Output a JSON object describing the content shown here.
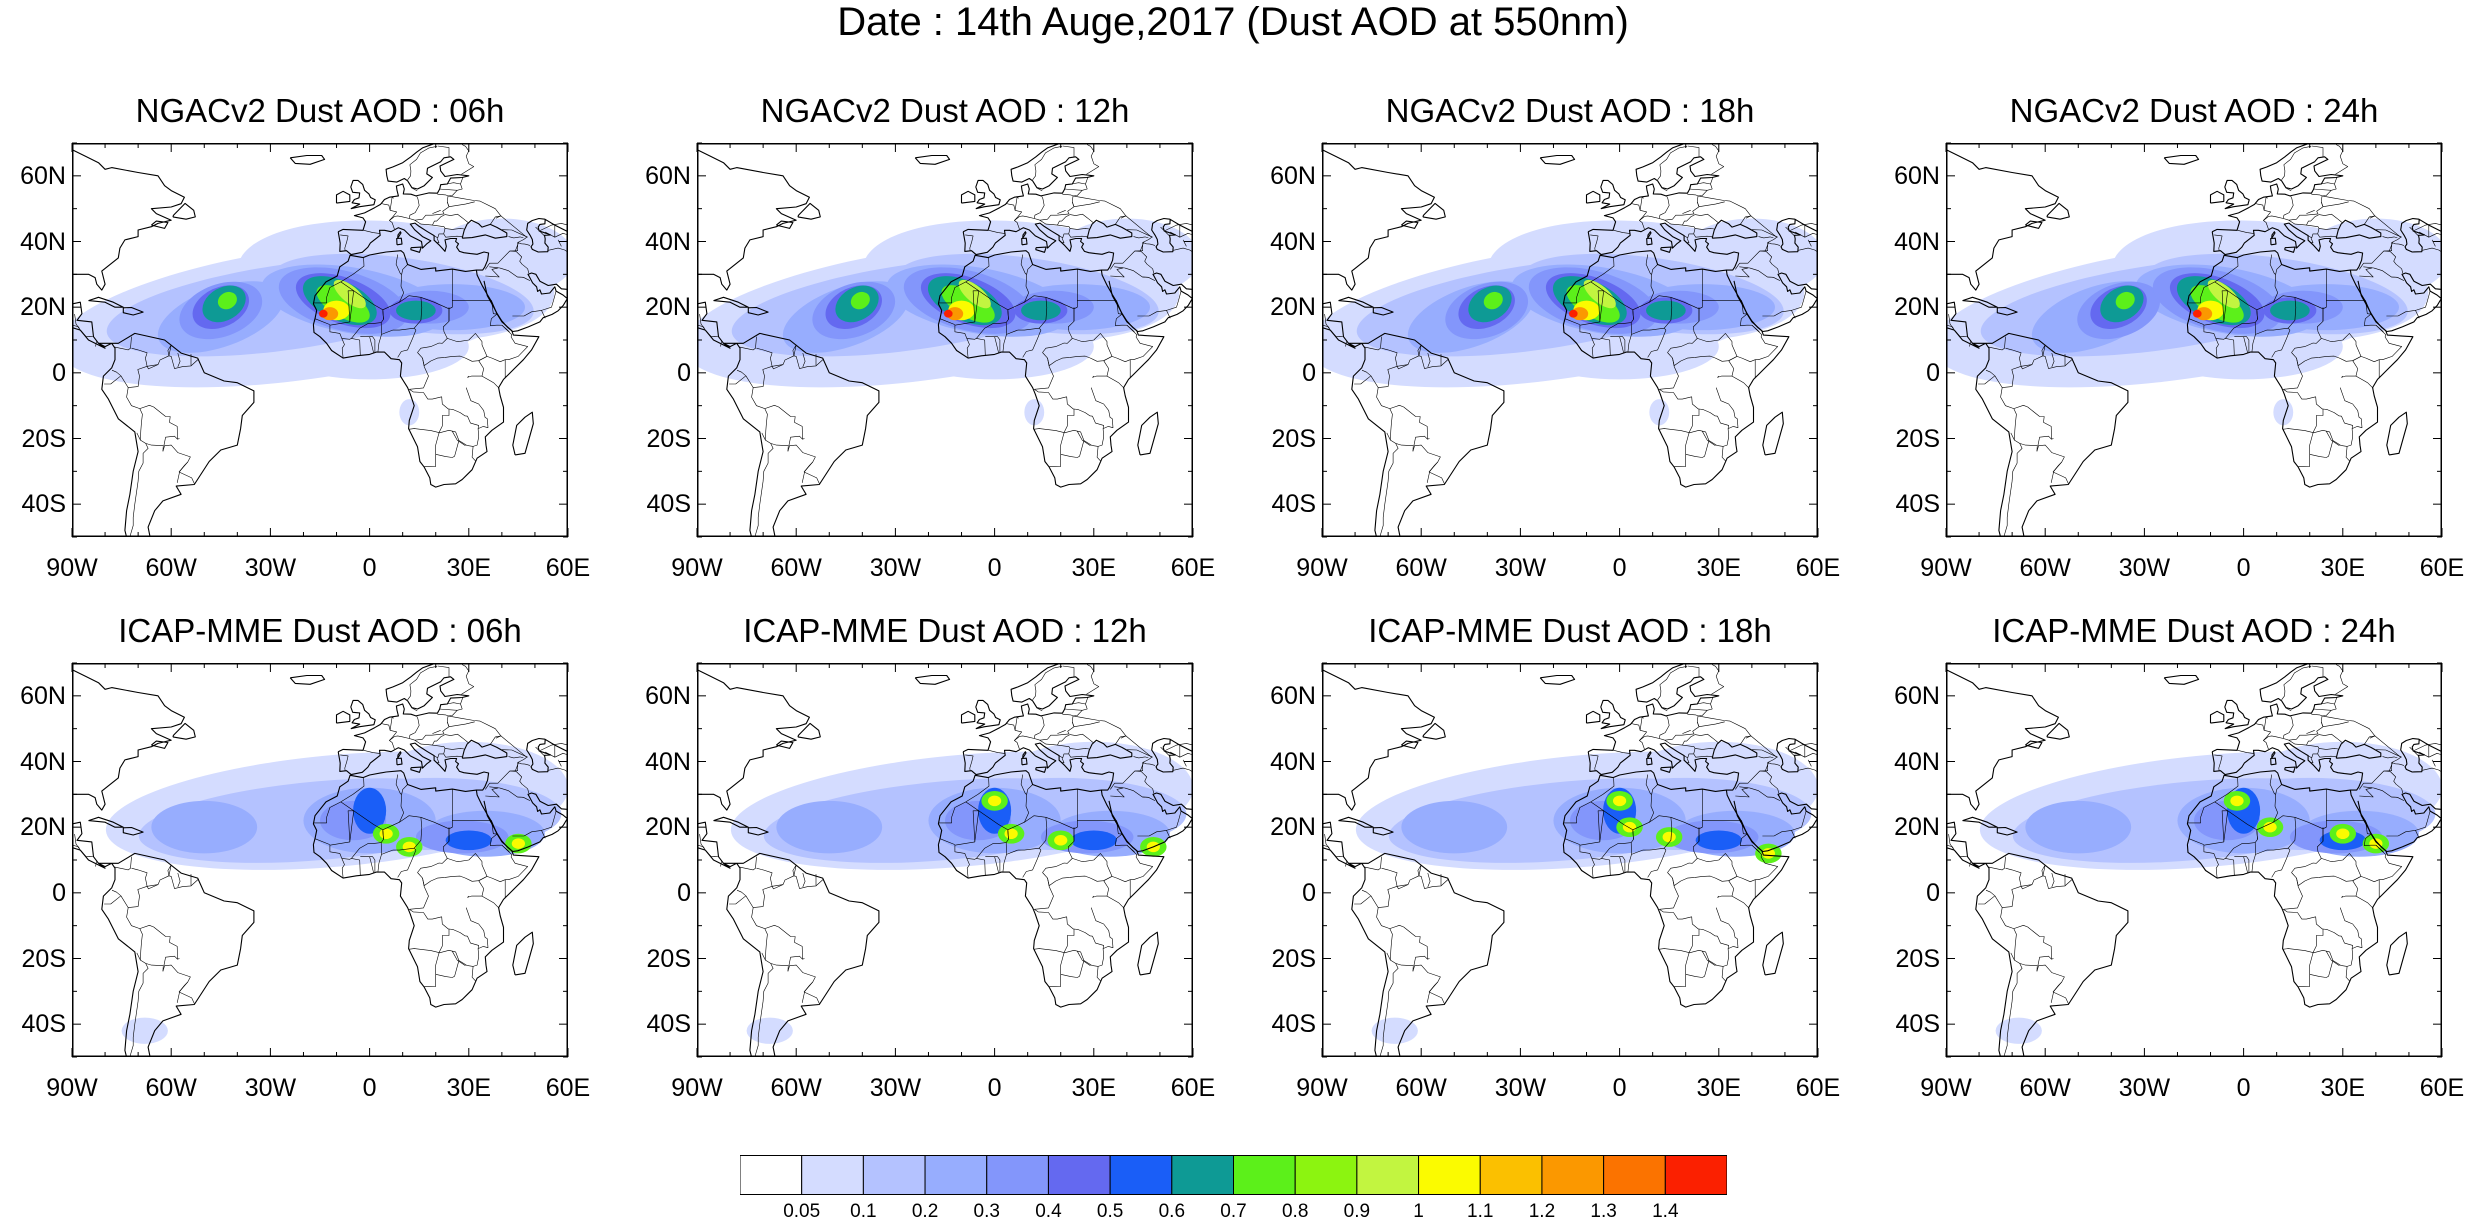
{
  "figure": {
    "title": "Date : 14th Auge,2017 (Dust AOD at 550nm)"
  },
  "panels": [
    {
      "title": "NGACv2 Dust AOD : 06h",
      "model": "ngac",
      "hour": 6
    },
    {
      "title": "NGACv2 Dust AOD : 12h",
      "model": "ngac",
      "hour": 12
    },
    {
      "title": "NGACv2 Dust AOD : 18h",
      "model": "ngac",
      "hour": 18
    },
    {
      "title": "NGACv2 Dust AOD : 24h",
      "model": "ngac",
      "hour": 24
    },
    {
      "title": "ICAP-MME Dust AOD : 06h",
      "model": "icap",
      "hour": 6
    },
    {
      "title": "ICAP-MME Dust AOD : 12h",
      "model": "icap",
      "hour": 12
    },
    {
      "title": "ICAP-MME Dust AOD : 18h",
      "model": "icap",
      "hour": 18
    },
    {
      "title": "ICAP-MME Dust AOD : 24h",
      "model": "icap",
      "hour": 24
    }
  ],
  "map": {
    "lon_range": [
      -90,
      60
    ],
    "lat_range": [
      -50,
      70
    ],
    "lon_ticks": [
      {
        "value": -90,
        "label": "90W"
      },
      {
        "value": -60,
        "label": "60W"
      },
      {
        "value": -30,
        "label": "30W"
      },
      {
        "value": 0,
        "label": "0"
      },
      {
        "value": 30,
        "label": "30E"
      },
      {
        "value": 60,
        "label": "60E"
      }
    ],
    "lat_ticks": [
      {
        "value": 60,
        "label": "60N"
      },
      {
        "value": 40,
        "label": "40N"
      },
      {
        "value": 20,
        "label": "20N"
      },
      {
        "value": 0,
        "label": "0"
      },
      {
        "value": -20,
        "label": "20S"
      },
      {
        "value": -40,
        "label": "40S"
      }
    ]
  },
  "colorbar": {
    "levels": [
      "0.05",
      "0.1",
      "0.2",
      "0.3",
      "0.4",
      "0.5",
      "0.6",
      "0.7",
      "0.8",
      "0.9",
      "1",
      "1.1",
      "1.2",
      "1.3",
      "1.4"
    ],
    "colors": [
      "#ffffff",
      "#d4dcff",
      "#b4c2ff",
      "#97adfe",
      "#8396fb",
      "#6469f0",
      "#1a5ef7",
      "#0e9a95",
      "#5cf01a",
      "#8cf410",
      "#c2f540",
      "#fbfb00",
      "#fbc000",
      "#fb9800",
      "#fb7300",
      "#fb2000"
    ]
  }
}
